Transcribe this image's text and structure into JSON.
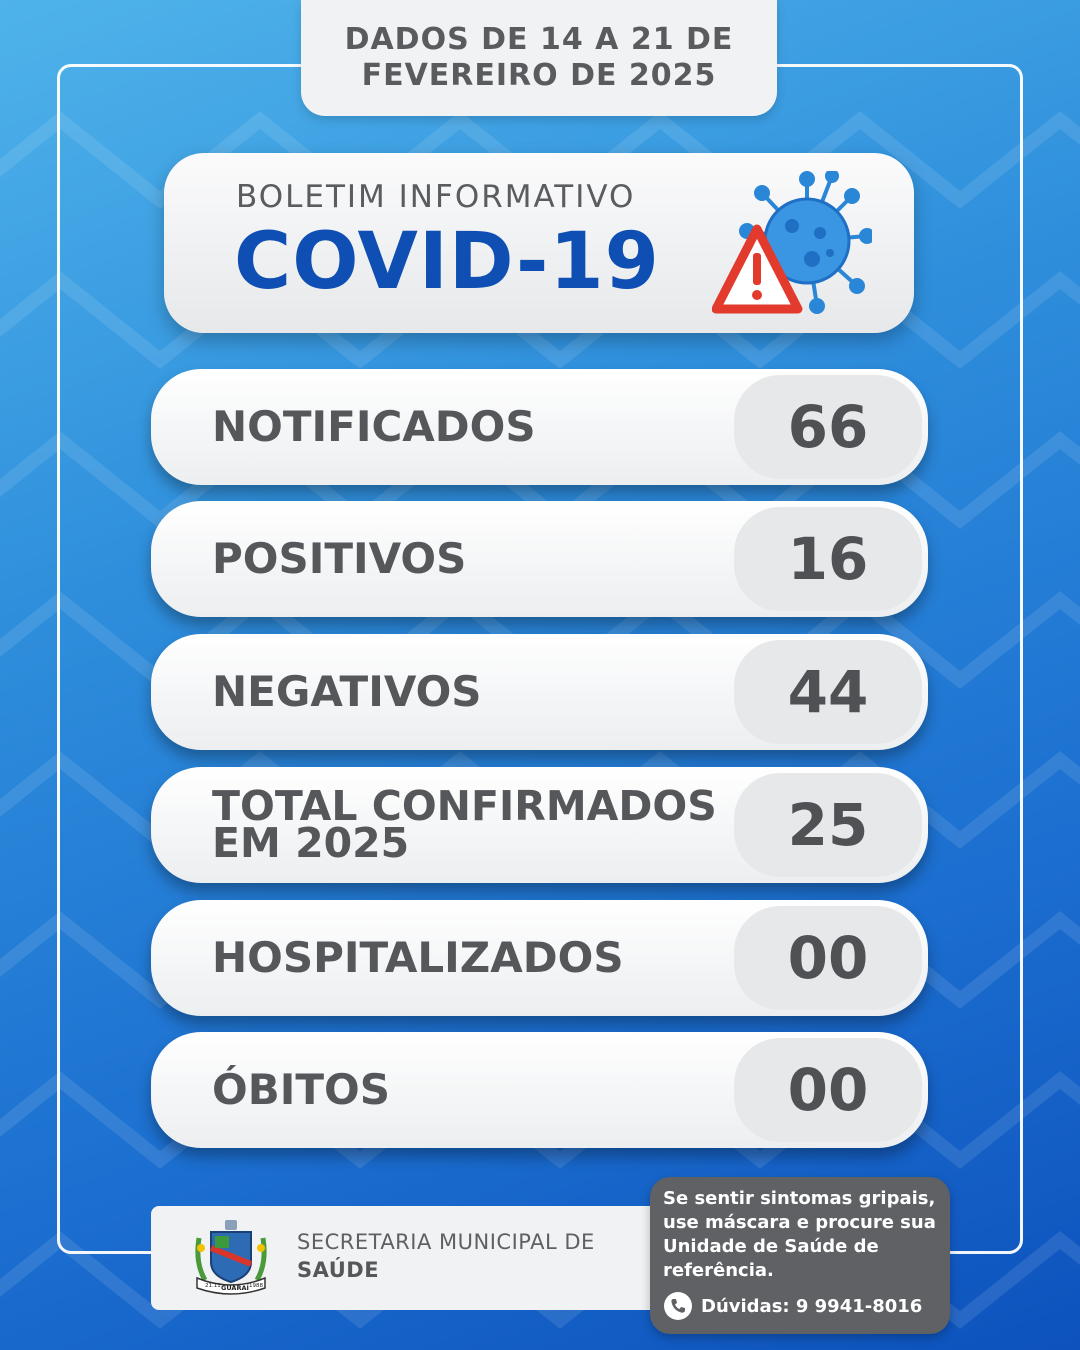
{
  "header": {
    "date_line1": "DADOS DE 14 A 21 DE",
    "date_line2": "FEVEREIRO DE 2025"
  },
  "title": {
    "subtitle": "BOLETIM INFORMATIVO",
    "main": "COVID-19",
    "icon": "virus-warning-icon"
  },
  "stats": [
    {
      "label": "NOTIFICADOS",
      "value": "66"
    },
    {
      "label": "POSITIVOS",
      "value": "16"
    },
    {
      "label": "NEGATIVOS",
      "value": "44"
    },
    {
      "label_line1": "TOTAL CONFIRMADOS",
      "label_line2": "EM 2025",
      "value": "25"
    },
    {
      "label": "HOSPITALIZADOS",
      "value": "00"
    },
    {
      "label": "ÓBITOS",
      "value": "00"
    }
  ],
  "footer": {
    "org_line1": "SECRETARIA MUNICIPAL DE",
    "org_line2": "SAÚDE",
    "crest": "municipal-crest",
    "crest_text_left": "21.11",
    "crest_text_mid": "GUARAÍ",
    "crest_text_right": "1988"
  },
  "advice": {
    "text": "Se sentir sintomas gripais, use máscara e procure sua Unidade de Saúde de referência.",
    "phone": "Dúvidas: 9 9941-8016",
    "phone_icon": "phone-icon"
  },
  "colors": {
    "title_blue": "#0f4fb3",
    "text_gray": "#55575b",
    "advice_bg": "#5f6165",
    "warning_red": "#e23b2e"
  }
}
